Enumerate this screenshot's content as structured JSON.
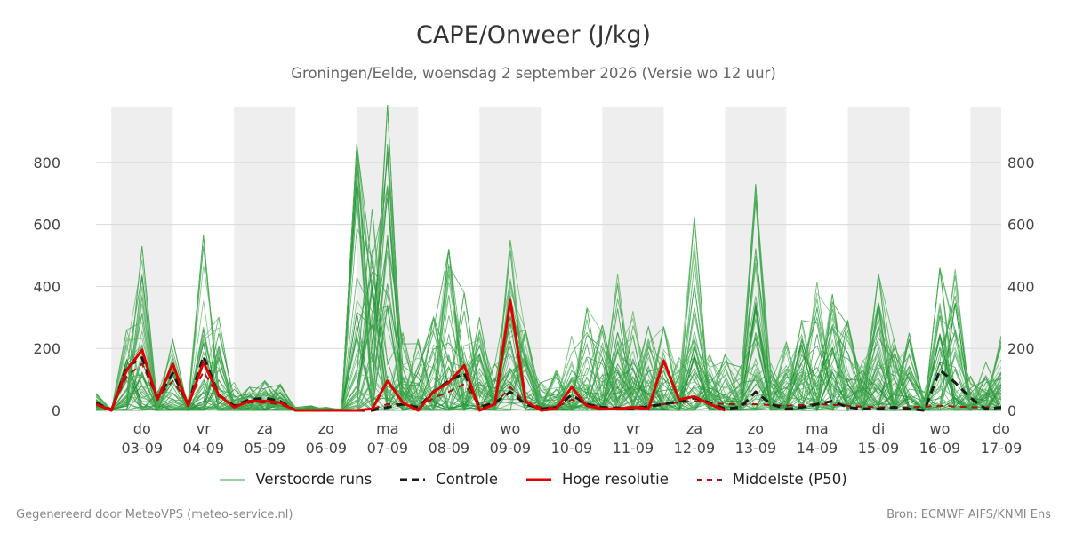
{
  "chart_data": {
    "type": "line",
    "title": "CAPE/Onweer (J/kg)",
    "subtitle": "Groningen/Eelde, woensdag  2 september 2026 (Versie wo 12 uur)",
    "ylim": [
      0,
      980
    ],
    "y_ticks": [
      0,
      200,
      400,
      600,
      800
    ],
    "x_range_days": [
      -0.25,
      14.5
    ],
    "weekend_days": [
      0,
      2,
      4,
      6,
      8,
      10,
      12,
      14
    ],
    "day_ticks": [
      {
        "day": "do",
        "date": "03-09"
      },
      {
        "day": "vr",
        "date": "04-09"
      },
      {
        "day": "za",
        "date": "05-09"
      },
      {
        "day": "zo",
        "date": "06-09"
      },
      {
        "day": "ma",
        "date": "07-09"
      },
      {
        "day": "di",
        "date": "08-09"
      },
      {
        "day": "wo",
        "date": "09-09"
      },
      {
        "day": "do",
        "date": "10-09"
      },
      {
        "day": "vr",
        "date": "11-09"
      },
      {
        "day": "za",
        "date": "12-09"
      },
      {
        "day": "zo",
        "date": "13-09"
      },
      {
        "day": "ma",
        "date": "14-09"
      },
      {
        "day": "di",
        "date": "15-09"
      },
      {
        "day": "wo",
        "date": "16-09"
      },
      {
        "day": "do",
        "date": "17-09"
      }
    ],
    "series": [
      {
        "name": "Hoge resolutie",
        "color": "#e00000",
        "style": "solid",
        "x": [
          -0.25,
          0,
          0.25,
          0.5,
          0.75,
          1,
          1.25,
          1.5,
          1.75,
          2,
          2.25,
          2.5,
          2.75,
          3,
          3.25,
          3.5,
          3.75,
          4,
          4.25,
          4.5,
          4.75,
          5,
          5.25,
          5.5,
          5.75,
          6,
          6.25,
          6.5,
          6.75,
          7,
          7.25,
          7.5,
          7.75,
          8,
          8.25,
          8.5,
          8.75,
          9,
          9.25,
          9.5,
          9.75,
          10
        ],
        "y": [
          20,
          0,
          130,
          195,
          35,
          150,
          15,
          155,
          50,
          10,
          30,
          30,
          25,
          0,
          0,
          0,
          0,
          0,
          5,
          95,
          25,
          0,
          60,
          90,
          145,
          0,
          20,
          355,
          30,
          0,
          5,
          75,
          15,
          5,
          5,
          10,
          5,
          160,
          35,
          45,
          20,
          0
        ]
      },
      {
        "name": "Controle",
        "color": "#1a1a1a",
        "style": "dash",
        "x": [
          -0.25,
          0,
          0.25,
          0.5,
          0.75,
          1,
          1.25,
          1.5,
          1.75,
          2,
          2.25,
          2.5,
          2.75,
          3,
          3.5,
          4,
          4.25,
          4.5,
          4.75,
          5,
          5.25,
          5.5,
          5.75,
          6,
          6.25,
          6.5,
          6.75,
          7,
          7.25,
          7.5,
          7.75,
          8,
          8.5,
          9,
          9.5,
          9.75,
          10,
          10.25,
          10.5,
          10.75,
          11,
          11.25,
          11.5,
          11.75,
          12,
          12.25,
          12.5,
          12.75,
          13,
          13.25,
          13.5,
          13.75,
          14,
          14.25,
          14.5
        ],
        "y": [
          25,
          0,
          140,
          170,
          40,
          120,
          20,
          175,
          50,
          15,
          35,
          40,
          30,
          0,
          0,
          0,
          0,
          10,
          20,
          10,
          60,
          95,
          120,
          10,
          25,
          60,
          20,
          5,
          10,
          50,
          20,
          10,
          5,
          20,
          40,
          25,
          5,
          10,
          60,
          20,
          5,
          10,
          20,
          30,
          10,
          5,
          5,
          10,
          5,
          0,
          130,
          90,
          40,
          5,
          10
        ]
      },
      {
        "name": "Middelste (P50)",
        "color": "#aa1111",
        "style": "dash",
        "x": [
          -0.25,
          0,
          0.25,
          0.5,
          0.75,
          1,
          1.25,
          1.5,
          1.75,
          2,
          2.25,
          2.5,
          2.75,
          3,
          3.5,
          4,
          4.25,
          4.5,
          4.75,
          5,
          5.25,
          5.5,
          5.75,
          6,
          6.25,
          6.5,
          6.75,
          7,
          7.25,
          7.5,
          7.75,
          8,
          8.5,
          9,
          9.5,
          10,
          10.5,
          11,
          11.5,
          12,
          12.5,
          13,
          13.5,
          14,
          14.5
        ],
        "y": [
          20,
          5,
          110,
          150,
          40,
          95,
          25,
          125,
          45,
          15,
          25,
          25,
          20,
          0,
          0,
          0,
          5,
          20,
          20,
          5,
          40,
          60,
          85,
          15,
          20,
          75,
          25,
          10,
          10,
          35,
          20,
          10,
          10,
          20,
          30,
          20,
          20,
          15,
          20,
          15,
          10,
          10,
          15,
          10,
          10
        ]
      }
    ],
    "ensemble_peaks": [
      [
        -0.25,
        55
      ],
      [
        0,
        5
      ],
      [
        0.25,
        260
      ],
      [
        0.5,
        530
      ],
      [
        0.75,
        60
      ],
      [
        1,
        230
      ],
      [
        1.25,
        30
      ],
      [
        1.5,
        565
      ],
      [
        1.75,
        300
      ],
      [
        2,
        90
      ],
      [
        2.25,
        75
      ],
      [
        2.5,
        95
      ],
      [
        2.75,
        85
      ],
      [
        3,
        10
      ],
      [
        3.25,
        15
      ],
      [
        3.5,
        10
      ],
      [
        3.75,
        5
      ],
      [
        4,
        860
      ],
      [
        4.25,
        650
      ],
      [
        4.5,
        985
      ],
      [
        4.75,
        250
      ],
      [
        5,
        230
      ],
      [
        5.25,
        300
      ],
      [
        5.5,
        520
      ],
      [
        5.75,
        380
      ],
      [
        6,
        300
      ],
      [
        6.25,
        150
      ],
      [
        6.5,
        550
      ],
      [
        6.75,
        260
      ],
      [
        7,
        90
      ],
      [
        7.25,
        130
      ],
      [
        7.5,
        240
      ],
      [
        7.75,
        330
      ],
      [
        8,
        275
      ],
      [
        8.25,
        440
      ],
      [
        8.5,
        320
      ],
      [
        8.75,
        270
      ],
      [
        9,
        270
      ],
      [
        9.25,
        170
      ],
      [
        9.5,
        625
      ],
      [
        9.75,
        180
      ],
      [
        10,
        180
      ],
      [
        10.25,
        140
      ],
      [
        10.5,
        730
      ],
      [
        10.75,
        150
      ],
      [
        11,
        220
      ],
      [
        11.25,
        290
      ],
      [
        11.5,
        415
      ],
      [
        11.75,
        375
      ],
      [
        12,
        290
      ],
      [
        12.25,
        160
      ],
      [
        12.5,
        440
      ],
      [
        12.75,
        230
      ],
      [
        13,
        250
      ],
      [
        13.25,
        60
      ],
      [
        13.5,
        460
      ],
      [
        13.75,
        455
      ],
      [
        14,
        110
      ],
      [
        14.25,
        155
      ],
      [
        14.5,
        240
      ]
    ],
    "ensemble_color": "#2e9e3e",
    "legend": [
      {
        "label": "Verstoorde runs",
        "color": "#5fb56a",
        "style": "thin"
      },
      {
        "label": "Controle",
        "color": "#1a1a1a",
        "style": "dash"
      },
      {
        "label": "Hoge resolutie",
        "color": "#e00000",
        "style": "solid"
      },
      {
        "label": "Middelste (P50)",
        "color": "#aa1111",
        "style": "dash"
      }
    ]
  },
  "footer": {
    "left": "Gegenereerd door MeteoVPS (meteo-service.nl)",
    "right": "Bron: ECMWF AIFS/KNMI Ens"
  }
}
